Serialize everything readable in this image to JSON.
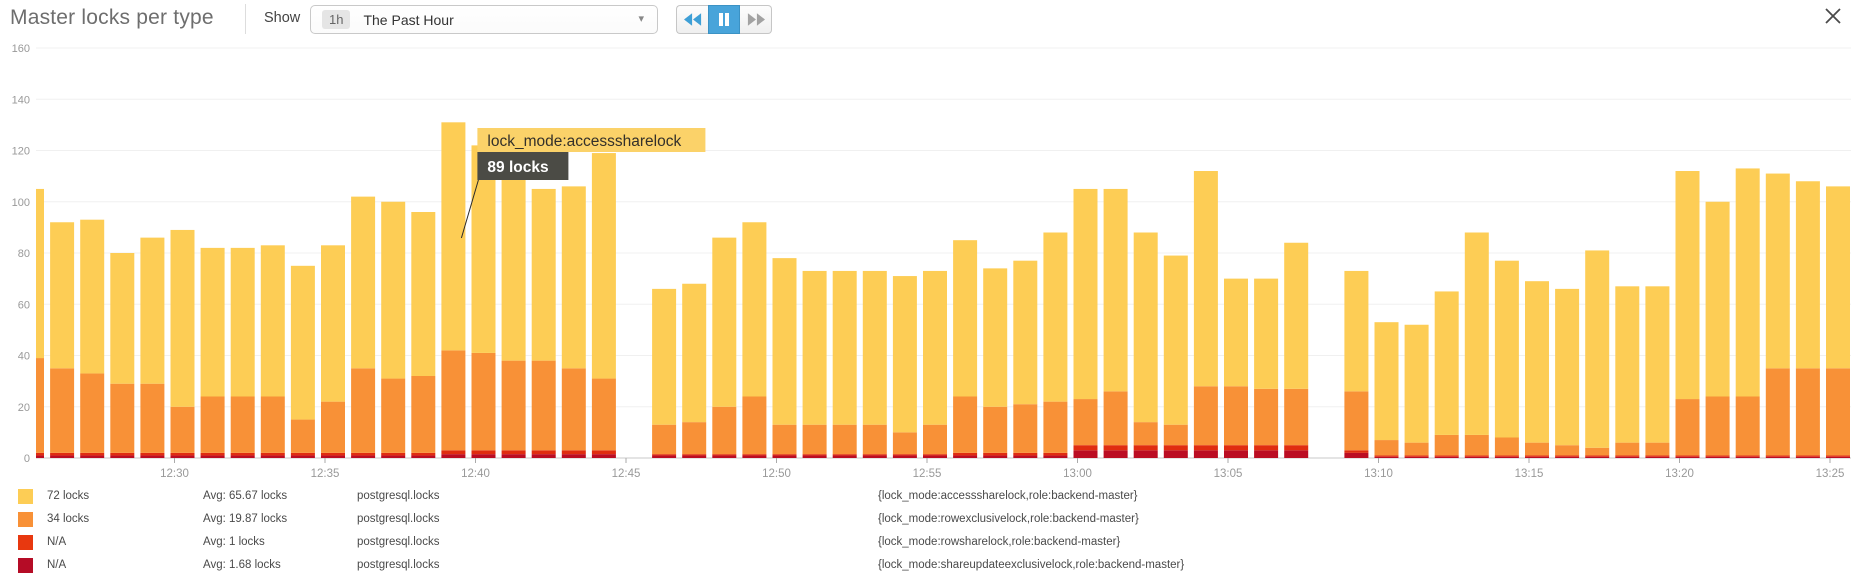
{
  "header": {
    "title": "Master locks per type",
    "show_label": "Show",
    "timeframe_badge": "1h",
    "timeframe_label": "The Past Hour",
    "caret_icon": "▾",
    "rewind_icon": "rewind",
    "pause_icon": "pause",
    "forward_icon": "fast-forward",
    "close_icon": "close"
  },
  "chart_data": {
    "type": "bar",
    "stacked": true,
    "title": "Master locks per type",
    "ylabel": "",
    "xlabel": "",
    "ylim": [
      0,
      160
    ],
    "yticks": [
      0,
      20,
      40,
      60,
      80,
      100,
      120,
      140,
      160
    ],
    "grid": true,
    "x_tick_labels": [
      "12:30",
      "12:35",
      "12:40",
      "12:45",
      "12:50",
      "12:55",
      "13:00",
      "13:05",
      "13:10",
      "13:15",
      "13:20",
      "13:25"
    ],
    "series_meta": [
      {
        "name": "lock_mode:accesssharelock",
        "color": "#FDCD55"
      },
      {
        "name": "lock_mode:rowexclusivelock",
        "color": "#F89137"
      },
      {
        "name": "lock_mode:rowsharelock",
        "color": "#E02C10"
      },
      {
        "name": "lock_mode:shareupdateexclusivelock",
        "color": "#BB0D23"
      }
    ],
    "bars": [
      {
        "t": "12:25",
        "segments": [
          66,
          37,
          1,
          1
        ]
      },
      {
        "t": "12:26",
        "segments": [
          57,
          33,
          1,
          1
        ]
      },
      {
        "t": "12:27",
        "segments": [
          60,
          31,
          1,
          1
        ]
      },
      {
        "t": "12:28",
        "segments": [
          51,
          27,
          1,
          1
        ]
      },
      {
        "t": "12:29",
        "segments": [
          57,
          27,
          1,
          1
        ]
      },
      {
        "t": "12:30",
        "segments": [
          69,
          18,
          1,
          1
        ]
      },
      {
        "t": "12:31",
        "segments": [
          58,
          22,
          1,
          1
        ]
      },
      {
        "t": "12:32",
        "segments": [
          58,
          22,
          1,
          1
        ]
      },
      {
        "t": "12:33",
        "segments": [
          59,
          22,
          1,
          1
        ]
      },
      {
        "t": "12:34",
        "segments": [
          60,
          13,
          1,
          1
        ]
      },
      {
        "t": "12:35",
        "segments": [
          61,
          20,
          1,
          1
        ]
      },
      {
        "t": "12:36",
        "segments": [
          67,
          33,
          1,
          1
        ]
      },
      {
        "t": "12:37",
        "segments": [
          69,
          29,
          1,
          1
        ]
      },
      {
        "t": "12:38",
        "segments": [
          64,
          30,
          1,
          1
        ]
      },
      {
        "t": "12:39",
        "segments": [
          89,
          39,
          1.5,
          1.5
        ]
      },
      {
        "t": "12:40",
        "segments": [
          81,
          38,
          1.5,
          1.5
        ]
      },
      {
        "t": "12:41",
        "segments": [
          82,
          35,
          1.5,
          1.5
        ]
      },
      {
        "t": "12:42",
        "segments": [
          67,
          35,
          1.5,
          1.5
        ]
      },
      {
        "t": "12:43",
        "segments": [
          71,
          32,
          1.5,
          1.5
        ]
      },
      {
        "t": "12:44",
        "segments": [
          88,
          28,
          1.5,
          1.5
        ]
      },
      {
        "t": "12:45",
        "segments": null
      },
      {
        "t": "12:46",
        "segments": [
          53,
          11.5,
          0.5,
          1
        ]
      },
      {
        "t": "12:47",
        "segments": [
          54,
          12.5,
          0.5,
          1
        ]
      },
      {
        "t": "12:48",
        "segments": [
          66,
          18.5,
          0.5,
          1
        ]
      },
      {
        "t": "12:49",
        "segments": [
          68,
          22.5,
          0.5,
          1
        ]
      },
      {
        "t": "12:50",
        "segments": [
          65,
          11.5,
          0.5,
          1
        ]
      },
      {
        "t": "12:51",
        "segments": [
          60,
          11.5,
          0.5,
          1
        ]
      },
      {
        "t": "12:52",
        "segments": [
          60,
          11.5,
          0.5,
          1
        ]
      },
      {
        "t": "12:53",
        "segments": [
          60,
          11.5,
          0.5,
          1
        ]
      },
      {
        "t": "12:54",
        "segments": [
          61,
          8.5,
          0.5,
          1
        ]
      },
      {
        "t": "12:55",
        "segments": [
          60,
          11.5,
          0.5,
          1
        ]
      },
      {
        "t": "12:56",
        "segments": [
          61,
          22,
          1,
          1
        ]
      },
      {
        "t": "12:57",
        "segments": [
          54,
          18,
          1,
          1
        ]
      },
      {
        "t": "12:58",
        "segments": [
          56,
          19,
          1,
          1
        ]
      },
      {
        "t": "12:59",
        "segments": [
          66,
          20,
          1,
          1
        ]
      },
      {
        "t": "13:00",
        "segments": [
          82,
          18,
          2,
          3
        ]
      },
      {
        "t": "13:01",
        "segments": [
          79,
          21,
          2,
          3
        ]
      },
      {
        "t": "13:02",
        "segments": [
          74,
          9,
          2,
          3
        ]
      },
      {
        "t": "13:03",
        "segments": [
          66,
          8,
          2,
          3
        ]
      },
      {
        "t": "13:04",
        "segments": [
          84,
          23,
          2,
          3
        ]
      },
      {
        "t": "13:05",
        "segments": [
          42,
          23,
          2,
          3
        ]
      },
      {
        "t": "13:06",
        "segments": [
          43,
          22,
          2,
          3
        ]
      },
      {
        "t": "13:07",
        "segments": [
          57,
          22,
          2,
          3
        ]
      },
      {
        "t": "13:08",
        "segments": null
      },
      {
        "t": "13:09",
        "segments": [
          47,
          23,
          1,
          2
        ]
      },
      {
        "t": "13:10",
        "segments": [
          46,
          6,
          0.5,
          0.5
        ]
      },
      {
        "t": "13:11",
        "segments": [
          46,
          5,
          0.5,
          0.5
        ]
      },
      {
        "t": "13:12",
        "segments": [
          56,
          8,
          0.5,
          0.5
        ]
      },
      {
        "t": "13:13",
        "segments": [
          79,
          8,
          0.5,
          0.5
        ]
      },
      {
        "t": "13:14",
        "segments": [
          69,
          7,
          0.5,
          0.5
        ]
      },
      {
        "t": "13:15",
        "segments": [
          63,
          5,
          0.5,
          0.5
        ]
      },
      {
        "t": "13:16",
        "segments": [
          61,
          4,
          0.5,
          0.5
        ]
      },
      {
        "t": "13:17",
        "segments": [
          77,
          3,
          0.5,
          0.5
        ]
      },
      {
        "t": "13:18",
        "segments": [
          61,
          5,
          0.5,
          0.5
        ]
      },
      {
        "t": "13:19",
        "segments": [
          61,
          5,
          0.5,
          0.5
        ]
      },
      {
        "t": "13:20",
        "segments": [
          89,
          22,
          0.5,
          0.5
        ]
      },
      {
        "t": "13:21",
        "segments": [
          76,
          23,
          0.5,
          0.5
        ]
      },
      {
        "t": "13:22",
        "segments": [
          89,
          23,
          0.5,
          0.5
        ]
      },
      {
        "t": "13:23",
        "segments": [
          76,
          34,
          0.5,
          0.5
        ]
      },
      {
        "t": "13:24",
        "segments": [
          73,
          34,
          0.5,
          0.5
        ]
      },
      {
        "t": "13:25",
        "segments": [
          71,
          34,
          0.5,
          0.5
        ]
      }
    ],
    "tooltip": {
      "label": "lock_mode:accesssharelock",
      "value": "89 locks",
      "anchor_time": "12:39",
      "label_bg": "#FBD269",
      "value_bg": "#4b4b45"
    },
    "legend_position": "bottom"
  },
  "legend": {
    "rows": [
      {
        "color": "#FDCD55",
        "value": "72 locks",
        "avg": "Avg: 65.67 locks",
        "metric": "postgresql.locks",
        "tags": "{lock_mode:accesssharelock,role:backend-master}"
      },
      {
        "color": "#F89137",
        "value": "34 locks",
        "avg": "Avg: 19.87 locks",
        "metric": "postgresql.locks",
        "tags": "{lock_mode:rowexclusivelock,role:backend-master}"
      },
      {
        "color": "#E8380F",
        "value": "N/A",
        "avg": "Avg: 1 locks",
        "metric": "postgresql.locks",
        "tags": "{lock_mode:rowsharelock,role:backend-master}"
      },
      {
        "color": "#B50C26",
        "value": "N/A",
        "avg": "Avg: 1.68 locks",
        "metric": "postgresql.locks",
        "tags": "{lock_mode:shareupdateexclusivelock,role:backend-master}"
      }
    ]
  }
}
